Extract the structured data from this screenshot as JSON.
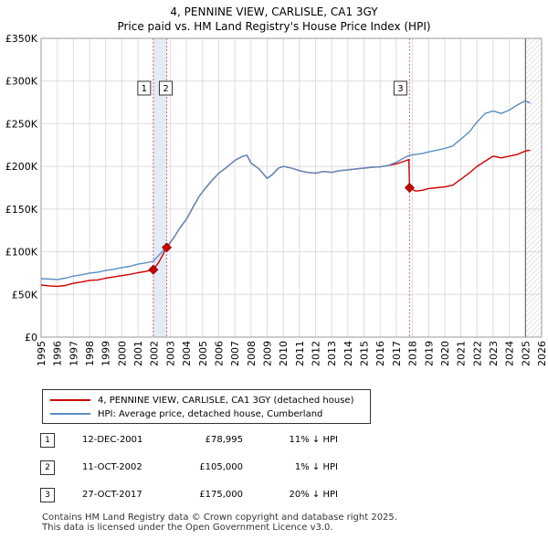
{
  "chart_data": {
    "type": "line",
    "title": "4, PENNINE VIEW, CARLISLE, CA1 3GY",
    "subtitle": "Price paid vs. HM Land Registry's House Price Index (HPI)",
    "xlim": [
      1995,
      2026
    ],
    "ylim": [
      0,
      350000
    ],
    "x_ticks": [
      1995,
      1996,
      1997,
      1998,
      1999,
      2000,
      2001,
      2002,
      2003,
      2004,
      2005,
      2006,
      2007,
      2008,
      2009,
      2010,
      2011,
      2012,
      2013,
      2014,
      2015,
      2016,
      2017,
      2018,
      2019,
      2020,
      2021,
      2022,
      2023,
      2024,
      2025,
      2026
    ],
    "x_tick_labels": [
      "1995",
      "1996",
      "1997",
      "1998",
      "1999",
      "2000",
      "2001",
      "2002",
      "2003",
      "2004",
      "2005",
      "2006",
      "2007",
      "2008",
      "2009",
      "2010",
      "2011",
      "2012",
      "2013",
      "2014",
      "2015",
      "2016",
      "2017",
      "2018",
      "2019",
      "2020",
      "2021",
      "2022",
      "2023",
      "2024",
      "2025",
      "2026"
    ],
    "y_ticks": [
      0,
      50000,
      100000,
      150000,
      200000,
      250000,
      300000,
      350000
    ],
    "y_tick_labels": [
      "£0",
      "£50K",
      "£100K",
      "£150K",
      "£200K",
      "£250K",
      "£300K",
      "£350K"
    ],
    "series": [
      {
        "name": "4, PENNINE VIEW, CARLISLE, CA1 3GY (detached house)",
        "color": "#cc0000",
        "x": [
          1995.0,
          1995.5,
          1996.0,
          1996.5,
          1997.0,
          1997.5,
          1998.0,
          1998.5,
          1999.0,
          1999.5,
          2000.0,
          2000.5,
          2001.0,
          2001.5,
          2001.95,
          2002.3,
          2002.78,
          2003.2,
          2003.6,
          2004.0,
          2004.4,
          2004.8,
          2005.2,
          2005.6,
          2006.0,
          2006.5,
          2007.0,
          2007.5,
          2007.75,
          2008.0,
          2008.5,
          2009.0,
          2009.3,
          2009.7,
          2010.0,
          2010.5,
          2011.0,
          2011.5,
          2012.0,
          2012.5,
          2013.0,
          2013.5,
          2014.0,
          2014.5,
          2015.0,
          2015.5,
          2016.0,
          2016.5,
          2017.0,
          2017.5,
          2017.78,
          2017.82,
          2018.2,
          2018.6,
          2019.0,
          2019.5,
          2020.0,
          2020.5,
          2021.0,
          2021.5,
          2022.0,
          2022.5,
          2023.0,
          2023.5,
          2024.0,
          2024.5,
          2025.0,
          2025.3
        ],
        "values": [
          61000,
          60000,
          59500,
          60500,
          63000,
          64500,
          66500,
          67000,
          69000,
          70500,
          72000,
          73500,
          75500,
          77000,
          78995,
          88000,
          105000,
          116000,
          128000,
          138000,
          152000,
          165000,
          175000,
          184000,
          192000,
          199000,
          207000,
          212000,
          213000,
          204000,
          197000,
          186000,
          190000,
          198000,
          200000,
          198000,
          195000,
          193000,
          192000,
          194000,
          193000,
          195000,
          196000,
          197000,
          198000,
          199000,
          199500,
          201000,
          203000,
          206000,
          208000,
          175000,
          171000,
          172000,
          174000,
          175000,
          176000,
          178000,
          185000,
          192000,
          200000,
          206000,
          212000,
          210000,
          212000,
          214000,
          218000,
          219000
        ]
      },
      {
        "name": "HPI: Average price, detached house, Cumberland",
        "color": "#5b8ec4",
        "x": [
          1995.0,
          1995.5,
          1996.0,
          1996.5,
          1997.0,
          1997.5,
          1998.0,
          1998.5,
          1999.0,
          1999.5,
          2000.0,
          2000.5,
          2001.0,
          2001.5,
          2001.95,
          2002.3,
          2002.78,
          2003.2,
          2003.6,
          2004.0,
          2004.4,
          2004.8,
          2005.2,
          2005.6,
          2006.0,
          2006.5,
          2007.0,
          2007.5,
          2007.75,
          2008.0,
          2008.5,
          2009.0,
          2009.3,
          2009.7,
          2010.0,
          2010.5,
          2011.0,
          2011.5,
          2012.0,
          2012.5,
          2013.0,
          2013.5,
          2014.0,
          2014.5,
          2015.0,
          2015.5,
          2016.0,
          2016.5,
          2017.0,
          2017.5,
          2017.82,
          2018.2,
          2018.6,
          2019.0,
          2019.5,
          2020.0,
          2020.5,
          2021.0,
          2021.5,
          2022.0,
          2022.5,
          2023.0,
          2023.5,
          2024.0,
          2024.5,
          2025.0,
          2025.3
        ],
        "values": [
          68500,
          68000,
          67500,
          69000,
          71500,
          73000,
          75000,
          76000,
          78000,
          79500,
          81500,
          83000,
          85500,
          87000,
          88800,
          96000,
          106000,
          116000,
          128000,
          138000,
          152000,
          165000,
          175000,
          184000,
          192000,
          199000,
          207000,
          212000,
          213000,
          204000,
          197000,
          186000,
          190000,
          198000,
          200000,
          198000,
          195000,
          193000,
          192000,
          194000,
          193000,
          195000,
          196000,
          197000,
          198000,
          199000,
          199500,
          201000,
          205000,
          210000,
          213000,
          214000,
          215000,
          217000,
          219000,
          221000,
          224000,
          232000,
          240000,
          252000,
          262000,
          265000,
          262000,
          266000,
          272000,
          277000,
          274000
        ]
      }
    ],
    "sales": [
      {
        "label": "1",
        "x": 2001.95,
        "value": 78995
      },
      {
        "label": "2",
        "x": 2002.78,
        "value": 105000
      },
      {
        "label": "3",
        "x": 2017.82,
        "value": 175000
      }
    ],
    "highlight_band": [
      2001.95,
      2002.78
    ],
    "hatch_from": 2025.0,
    "grid": true
  },
  "legend": {
    "items": [
      {
        "label": "4, PENNINE VIEW, CARLISLE, CA1 3GY (detached house)",
        "color": "#cc0000"
      },
      {
        "label": "HPI: Average price, detached house, Cumberland",
        "color": "#5b8ec4"
      }
    ]
  },
  "sales_table": [
    {
      "num": "1",
      "date": "12-DEC-2001",
      "price": "£78,995",
      "hpi": "11% ↓ HPI"
    },
    {
      "num": "2",
      "date": "11-OCT-2002",
      "price": "£105,000",
      "hpi": "1% ↓ HPI"
    },
    {
      "num": "3",
      "date": "27-OCT-2017",
      "price": "£175,000",
      "hpi": "20% ↓ HPI"
    }
  ],
  "footer": {
    "line1": "Contains HM Land Registry data © Crown copyright and database right 2025.",
    "line2": "This data is licensed under the Open Government Licence v3.0."
  }
}
